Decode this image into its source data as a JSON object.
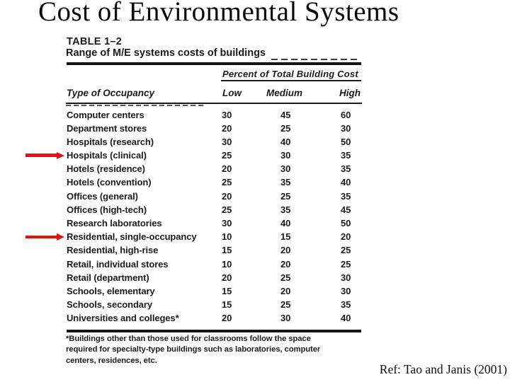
{
  "slide": {
    "title": "Cost of Environmental Systems",
    "reference": "Ref: Tao and Janis (2001)",
    "background_color": "#ffffff"
  },
  "table": {
    "label": "TABLE 1–2",
    "caption": "Range of M/E systems costs of buildings",
    "spanner_header": "Percent of Total Building Cost",
    "columns": [
      "Type of Occupancy",
      "Low",
      "Medium",
      "High"
    ],
    "rows": [
      {
        "occupancy": "Computer centers",
        "low": 30,
        "medium": 45,
        "high": 60,
        "arrow": false
      },
      {
        "occupancy": "Department stores",
        "low": 20,
        "medium": 25,
        "high": 30,
        "arrow": false
      },
      {
        "occupancy": "Hospitals (research)",
        "low": 30,
        "medium": 40,
        "high": 50,
        "arrow": false
      },
      {
        "occupancy": "Hospitals (clinical)",
        "low": 25,
        "medium": 30,
        "high": 35,
        "arrow": true
      },
      {
        "occupancy": "Hotels (residence)",
        "low": 20,
        "medium": 30,
        "high": 35,
        "arrow": false
      },
      {
        "occupancy": "Hotels (convention)",
        "low": 25,
        "medium": 35,
        "high": 40,
        "arrow": false
      },
      {
        "occupancy": "Offices (general)",
        "low": 20,
        "medium": 25,
        "high": 35,
        "arrow": false
      },
      {
        "occupancy": "Offices (high-tech)",
        "low": 25,
        "medium": 35,
        "high": 45,
        "arrow": false
      },
      {
        "occupancy": "Research laboratories",
        "low": 30,
        "medium": 40,
        "high": 50,
        "arrow": false
      },
      {
        "occupancy": "Residential, single-occupancy",
        "low": 10,
        "medium": 15,
        "high": 20,
        "arrow": true
      },
      {
        "occupancy": "Residential, high-rise",
        "low": 15,
        "medium": 20,
        "high": 25,
        "arrow": false
      },
      {
        "occupancy": "Retail, individual stores",
        "low": 10,
        "medium": 20,
        "high": 25,
        "arrow": false
      },
      {
        "occupancy": "Retail (department)",
        "low": 20,
        "medium": 25,
        "high": 30,
        "arrow": false
      },
      {
        "occupancy": "Schools, elementary",
        "low": 15,
        "medium": 20,
        "high": 30,
        "arrow": false
      },
      {
        "occupancy": "Schools, secondary",
        "low": 15,
        "medium": 25,
        "high": 35,
        "arrow": false
      },
      {
        "occupancy": "Universities and colleges*",
        "low": 20,
        "medium": 30,
        "high": 40,
        "arrow": false
      }
    ],
    "footnote_lines": [
      "*Buildings other than those used for classrooms follow the space",
      "required for specialty-type buildings such as laboratories, computer",
      "centers, residences, etc."
    ]
  },
  "annotations": {
    "arrow_color": "#e01212",
    "arrow_targets": [
      "Hospitals (clinical)",
      "Residential, single-occupancy"
    ]
  }
}
